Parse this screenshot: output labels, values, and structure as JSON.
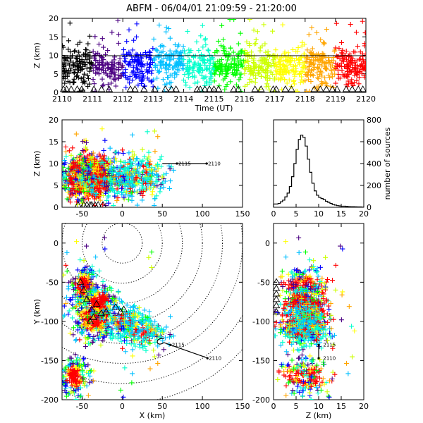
{
  "title": "ABFM - 06/04/01 21:09:59 - 21:20:00",
  "colors": {
    "foreground": "#000000",
    "background": "#ffffff",
    "rainbow": [
      "#000000",
      "#4b0082",
      "#0000ff",
      "#00bfff",
      "#00ffcc",
      "#00ff00",
      "#ccff00",
      "#ffff00",
      "#ffa500",
      "#ff0000"
    ]
  },
  "chart_data": [
    {
      "panel": "time-height",
      "type": "scatter",
      "xlabel": "Time (UT)",
      "ylabel": "Z (km)",
      "xlim": [
        2110,
        2120
      ],
      "ylim": [
        0,
        20
      ],
      "xticks": [
        "2110",
        "2111",
        "2112",
        "2113",
        "2114",
        "2115",
        "2116",
        "2117",
        "2118",
        "2119",
        "2120"
      ],
      "yticks": [
        "0",
        "5",
        "10",
        "15",
        "20"
      ],
      "reference_line_z": 9.9,
      "marker": "plus",
      "color_by": "time",
      "ground_station_marker": "triangle",
      "ground_station_times": [
        2110.05,
        2110.15,
        2110.3,
        2110.5,
        2110.65,
        2111.05,
        2111.3,
        2111.55,
        2112.25,
        2112.4,
        2112.7,
        2113.05,
        2113.4,
        2113.6,
        2113.75,
        2114.45,
        2114.55,
        2114.7,
        2114.85,
        2115.0,
        2115.15,
        2115.65,
        2115.8,
        2116.35,
        2116.55,
        2116.95,
        2117.05,
        2117.35,
        2117.55,
        2118.3,
        2118.5,
        2118.7,
        2118.9,
        2119.05,
        2119.35,
        2119.55,
        2119.75,
        2119.9
      ],
      "source_altitude_distribution": {
        "center_km": 7,
        "spread_km": 2.6,
        "min_km": 0,
        "max_km": 20
      }
    },
    {
      "panel": "x-z",
      "type": "scatter",
      "xlabel": "",
      "ylabel": "Z (km)",
      "xlim": [
        -75,
        150
      ],
      "ylim": [
        0,
        20
      ],
      "xticks": [
        "-50",
        "0",
        "50",
        "100",
        "150"
      ],
      "yticks": [
        "0",
        "5",
        "10",
        "15",
        "20"
      ],
      "storm_track": {
        "x": [
          62,
          107
        ],
        "z": [
          10,
          10
        ],
        "labels": [
          "2115",
          "2110"
        ],
        "label_x": [
          70,
          107
        ]
      },
      "ground_station_x": [
        -55,
        -48,
        -44,
        -40,
        -38,
        -34,
        -30,
        -24
      ]
    },
    {
      "panel": "histogram",
      "type": "bar",
      "xlabel": "",
      "ylabel": "number of sources",
      "xlim": [
        0,
        20
      ],
      "ylim": [
        0,
        800
      ],
      "xticks": [
        "0",
        "5",
        "10",
        "15",
        "20"
      ],
      "yticks": [
        "0",
        "200",
        "400",
        "600",
        "800"
      ],
      "bin_width_km": 0.5,
      "bins": [
        0,
        0.5,
        1,
        1.5,
        2,
        2.5,
        3,
        3.5,
        4,
        4.5,
        5,
        5.5,
        6,
        6.5,
        7,
        7.5,
        8,
        8.5,
        9,
        9.5,
        10,
        10.5,
        11,
        11.5,
        12,
        12.5,
        13,
        13.5,
        14,
        14.5,
        15,
        15.5,
        16,
        16.5,
        17,
        17.5,
        18,
        18.5,
        19,
        19.5
      ],
      "counts": [
        30,
        30,
        35,
        50,
        65,
        95,
        130,
        190,
        280,
        400,
        530,
        620,
        660,
        640,
        560,
        440,
        320,
        220,
        150,
        110,
        90,
        80,
        70,
        55,
        45,
        35,
        25,
        20,
        15,
        12,
        10,
        10,
        8,
        6,
        5,
        5,
        4,
        3,
        3,
        2
      ]
    },
    {
      "panel": "x-y",
      "type": "scatter",
      "xlabel": "X (km)",
      "ylabel": "Y (km)",
      "xlim": [
        -75,
        150
      ],
      "ylim": [
        -200,
        25
      ],
      "xticks": [
        "-50",
        "0",
        "50",
        "100",
        "150"
      ],
      "yticks": [
        "-200",
        "-150",
        "-100",
        "-50",
        "0"
      ],
      "range_rings_km": [
        25,
        50,
        75,
        100,
        125,
        150,
        175,
        200
      ],
      "network_center": [
        0,
        0
      ],
      "storm_track": {
        "x": [
          52,
          60,
          107
        ],
        "y": [
          -127,
          -130,
          -147
        ],
        "labels": [
          "2115",
          "2110"
        ],
        "label_x": [
          62,
          108
        ],
        "label_y": [
          -130,
          -147
        ]
      },
      "lightning_clusters": [
        {
          "x": -48,
          "y": -55,
          "sx": 8,
          "sy": 12
        },
        {
          "x": -35,
          "y": -95,
          "sx": 14,
          "sy": 14
        },
        {
          "x": -28,
          "y": -75,
          "sx": 10,
          "sy": 10
        },
        {
          "x": 5,
          "y": -100,
          "sx": 12,
          "sy": 10
        },
        {
          "x": 25,
          "y": -115,
          "sx": 14,
          "sy": 10
        },
        {
          "x": -60,
          "y": -170,
          "sx": 8,
          "sy": 12
        }
      ],
      "ground_station_xy": [
        [
          -52,
          -50
        ],
        [
          -48,
          -60
        ],
        [
          -44,
          -72
        ],
        [
          -38,
          -85
        ],
        [
          -32,
          -78
        ],
        [
          -26,
          -90
        ],
        [
          -20,
          -88
        ],
        [
          -8,
          -82
        ],
        [
          -2,
          -88
        ],
        [
          2,
          -85
        ],
        [
          -40,
          -100
        ],
        [
          -36,
          -95
        ]
      ]
    },
    {
      "panel": "z-y",
      "type": "scatter",
      "xlabel": "Z (km)",
      "ylabel": "",
      "xlim": [
        0,
        20
      ],
      "ylim": [
        -200,
        25
      ],
      "xticks": [
        "0",
        "5",
        "10",
        "15",
        "20"
      ],
      "yticks": [
        "-200",
        "-150",
        "-100",
        "-50",
        "0"
      ],
      "storm_track": {
        "z": [
          10,
          10
        ],
        "y": [
          -130,
          -147
        ],
        "labels": [
          "2115",
          "2110"
        ],
        "label_z": [
          11,
          11
        ]
      },
      "ground_station_y": [
        -50,
        -58,
        -65,
        -72,
        -80,
        -88
      ]
    }
  ]
}
